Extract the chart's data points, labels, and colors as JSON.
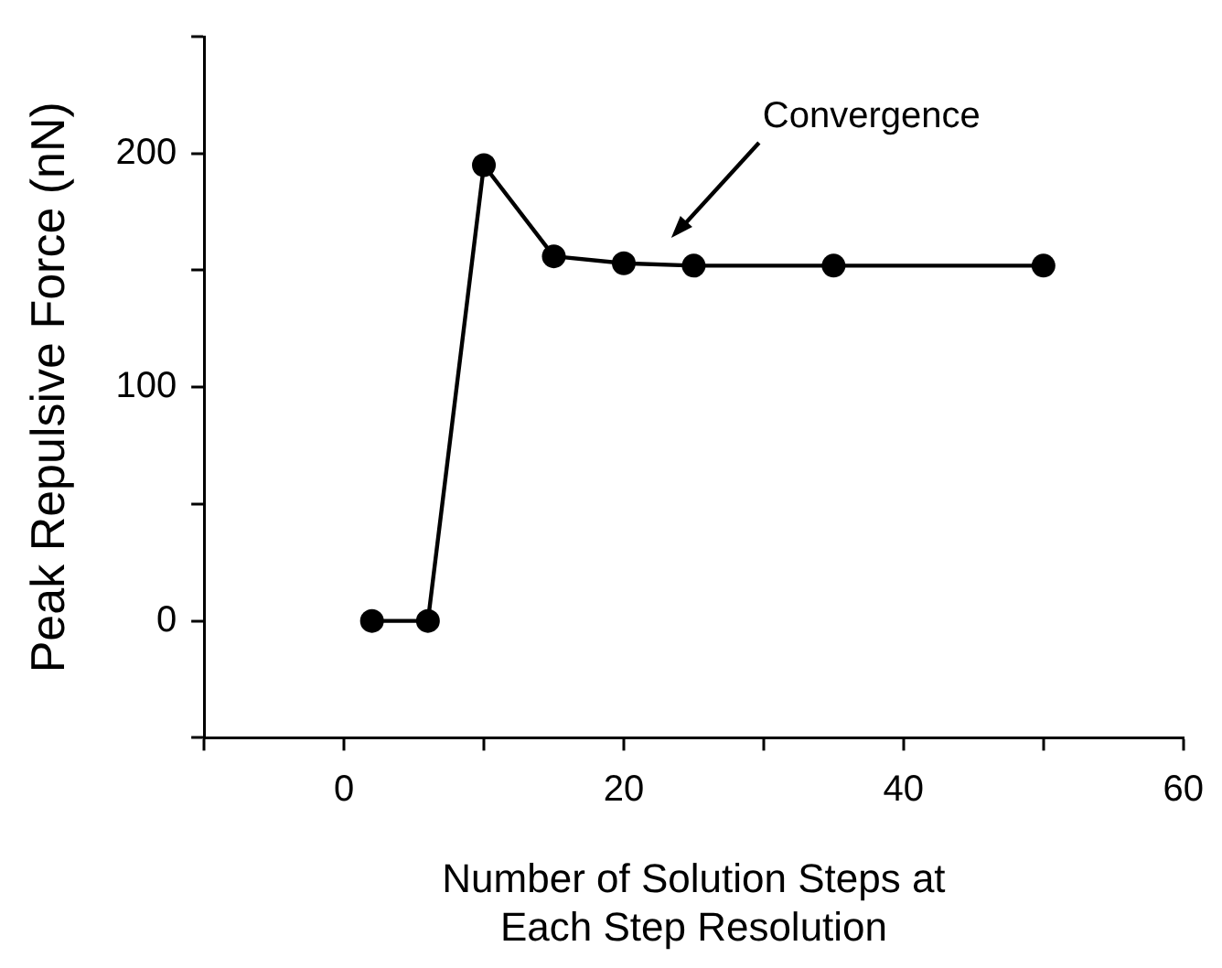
{
  "chart_data": {
    "type": "line",
    "xlabel": "Number of Solution Steps at Each Step Resolution",
    "ylabel": "Peak Repulsive Force (nN)",
    "x": [
      2,
      6,
      10,
      15,
      20,
      25,
      35,
      50
    ],
    "series": [
      {
        "color": "#000000",
        "values": [
          0,
          0,
          195,
          156,
          153,
          152,
          152,
          152
        ]
      }
    ],
    "xlim": [
      -10,
      60
    ],
    "xticks": [
      {
        "value": -10,
        "label": null
      },
      0,
      {
        "value": 10,
        "label": null
      },
      20,
      {
        "value": 30,
        "label": null
      },
      40,
      {
        "value": 50,
        "label": null
      },
      60
    ],
    "ylim": [
      -50,
      250
    ],
    "yticks": [
      {
        "value": -50,
        "label": null
      },
      0,
      {
        "value": 50,
        "label": null
      },
      100,
      {
        "value": 150,
        "label": null
      },
      200,
      {
        "value": 250,
        "label": null
      }
    ],
    "annotations": [
      "Convergence"
    ],
    "grid": false,
    "legend": false,
    "marker": "circle",
    "line_style": "solid"
  }
}
